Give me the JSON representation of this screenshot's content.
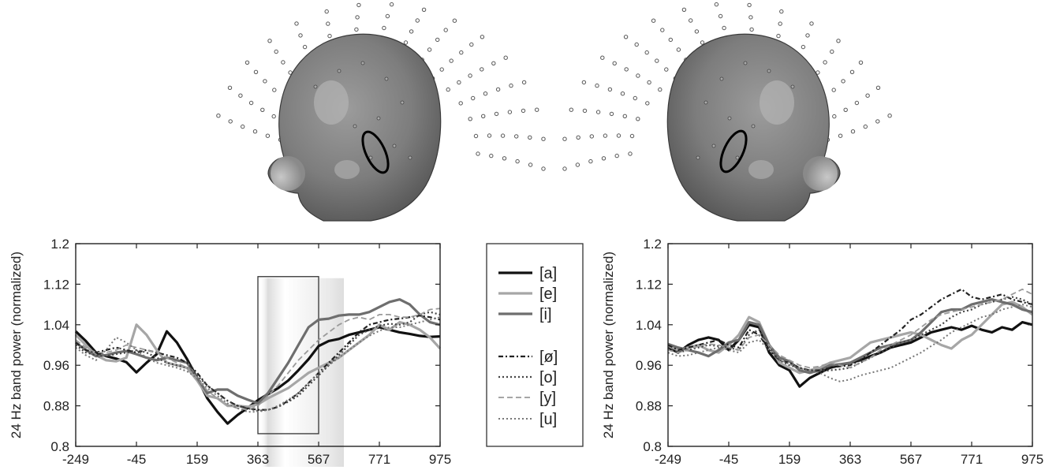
{
  "figure": {
    "legend": [
      "[a]",
      "[e]",
      "[i]",
      "[ø]",
      "[o]",
      "[y]",
      "[u]"
    ]
  },
  "chart_data": [
    {
      "type": "line",
      "ylabel": "24 Hz band power (normalized)",
      "xlabel": "",
      "xlim": [
        -249,
        975
      ],
      "ylim": [
        0.8,
        1.2
      ],
      "xticks": [
        -249,
        -45,
        159,
        363,
        567,
        771,
        975
      ],
      "xtick_labels": [
        "-249",
        "-45",
        "159",
        "363",
        "567",
        "771",
        "975"
      ],
      "yticks": [
        0.8,
        0.88,
        0.96,
        1.04,
        1.12,
        1.2
      ],
      "ytick_labels": [
        "0.8",
        "0.88",
        "0.96",
        "1.04",
        "1.12",
        "1.2"
      ],
      "grid": false,
      "highlight_window": {
        "x": [
          363,
          567
        ],
        "y": [
          0.825,
          1.135
        ]
      },
      "x": [
        -249,
        -215,
        -181,
        -147,
        -113,
        -79,
        -45,
        -11,
        23,
        57,
        91,
        125,
        159,
        193,
        227,
        261,
        295,
        329,
        363,
        397,
        431,
        465,
        499,
        533,
        567,
        601,
        635,
        669,
        703,
        737,
        771,
        805,
        839,
        873,
        907,
        941,
        975
      ],
      "series": [
        {
          "name": "[a]",
          "style": "solid",
          "color": "#111111",
          "width": 3.2,
          "values": [
            1.027,
            1.008,
            0.985,
            0.978,
            0.973,
            0.966,
            0.946,
            0.965,
            0.982,
            1.027,
            1.005,
            0.972,
            0.935,
            0.895,
            0.868,
            0.845,
            0.862,
            0.876,
            0.891,
            0.903,
            0.915,
            0.93,
            0.95,
            0.972,
            0.998,
            1.008,
            1.012,
            1.02,
            1.025,
            1.03,
            1.035,
            1.03,
            1.025,
            1.022,
            1.018,
            1.016,
            1.017
          ]
        },
        {
          "name": "[e]",
          "style": "solid",
          "color": "#a6a6a6",
          "width": 3.2,
          "values": [
            1.02,
            1.0,
            0.98,
            0.97,
            0.968,
            0.975,
            1.04,
            1.02,
            0.99,
            0.965,
            0.96,
            0.955,
            0.93,
            0.9,
            0.895,
            0.88,
            0.88,
            0.878,
            0.883,
            0.895,
            0.905,
            0.915,
            0.93,
            0.945,
            0.955,
            0.965,
            0.975,
            0.99,
            1.005,
            1.02,
            1.04,
            1.03,
            1.045,
            1.04,
            1.03,
            1.015,
            0.993
          ]
        },
        {
          "name": "[i]",
          "style": "solid",
          "color": "#6e6e6e",
          "width": 3.2,
          "values": [
            1.005,
            0.99,
            0.978,
            0.98,
            0.985,
            0.988,
            0.982,
            0.975,
            0.97,
            0.975,
            0.97,
            0.965,
            0.935,
            0.905,
            0.912,
            0.912,
            0.9,
            0.892,
            0.885,
            0.905,
            0.935,
            0.965,
            1.0,
            1.035,
            1.05,
            1.052,
            1.058,
            1.06,
            1.06,
            1.065,
            1.075,
            1.085,
            1.09,
            1.08,
            1.06,
            1.045,
            1.04
          ]
        },
        {
          "name": "[ø]",
          "style": "dashdot",
          "color": "#222222",
          "width": 2.2,
          "values": [
            1.005,
            0.99,
            0.985,
            0.99,
            0.995,
            0.99,
            0.985,
            0.99,
            0.985,
            0.98,
            0.975,
            0.965,
            0.945,
            0.92,
            0.905,
            0.89,
            0.88,
            0.875,
            0.872,
            0.872,
            0.878,
            0.89,
            0.905,
            0.925,
            0.945,
            0.965,
            0.985,
            1.005,
            1.025,
            1.04,
            1.045,
            1.05,
            1.052,
            1.055,
            1.058,
            1.055,
            1.05
          ]
        },
        {
          "name": "[o]",
          "style": "dotted",
          "color": "#444444",
          "width": 2.2,
          "values": [
            1.0,
            0.985,
            0.98,
            0.978,
            0.982,
            0.985,
            0.99,
            0.985,
            0.975,
            0.965,
            0.96,
            0.955,
            0.94,
            0.92,
            0.905,
            0.89,
            0.88,
            0.875,
            0.87,
            0.872,
            0.878,
            0.888,
            0.9,
            0.92,
            0.94,
            0.96,
            0.98,
            1.0,
            1.02,
            1.03,
            1.038,
            1.042,
            1.04,
            1.045,
            1.06,
            1.065,
            1.06
          ]
        },
        {
          "name": "[y]",
          "style": "dashed",
          "color": "#9a9a9a",
          "width": 1.8,
          "values": [
            1.01,
            0.995,
            0.985,
            0.985,
            0.99,
            1.0,
            0.995,
            0.99,
            0.985,
            0.975,
            0.965,
            0.955,
            0.935,
            0.91,
            0.895,
            0.882,
            0.875,
            0.872,
            0.88,
            0.9,
            0.92,
            0.945,
            0.97,
            0.99,
            1.01,
            1.025,
            1.04,
            1.05,
            1.055,
            1.05,
            1.06,
            1.06,
            1.055,
            1.055,
            1.06,
            1.07,
            1.072
          ]
        },
        {
          "name": "[u]",
          "style": "dotted",
          "color": "#777777",
          "width": 2.0,
          "values": [
            0.995,
            0.98,
            0.97,
            0.99,
            1.015,
            1.005,
            0.99,
            0.975,
            0.965,
            0.96,
            0.955,
            0.948,
            0.935,
            0.915,
            0.9,
            0.885,
            0.875,
            0.868,
            0.868,
            0.872,
            0.88,
            0.892,
            0.905,
            0.925,
            0.945,
            0.96,
            0.975,
            0.99,
            1.005,
            1.018,
            1.028,
            1.035,
            1.035,
            1.04,
            1.045,
            1.05,
            1.055
          ]
        }
      ]
    },
    {
      "type": "line",
      "ylabel": "24 Hz band power (normalized)",
      "xlabel": "",
      "xlim": [
        -249,
        975
      ],
      "ylim": [
        0.8,
        1.2
      ],
      "xticks": [
        -249,
        -45,
        159,
        363,
        567,
        771,
        975
      ],
      "xtick_labels": [
        "-249",
        "-45",
        "159",
        "363",
        "567",
        "771",
        "975"
      ],
      "yticks": [
        0.8,
        0.88,
        0.96,
        1.04,
        1.12,
        1.2
      ],
      "ytick_labels": [
        "0.8",
        "0.88",
        "0.96",
        "1.04",
        "1.12",
        "1.2"
      ],
      "grid": false,
      "x": [
        -249,
        -215,
        -181,
        -147,
        -113,
        -79,
        -45,
        -11,
        23,
        57,
        91,
        125,
        159,
        193,
        227,
        261,
        295,
        329,
        363,
        397,
        431,
        465,
        499,
        533,
        567,
        601,
        635,
        669,
        703,
        737,
        771,
        805,
        839,
        873,
        907,
        941,
        975
      ],
      "series": [
        {
          "name": "[a]",
          "style": "solid",
          "color": "#111111",
          "width": 3.2,
          "values": [
            0.995,
            0.985,
            1.0,
            1.01,
            1.015,
            1.01,
            0.99,
            1.01,
            1.04,
            1.035,
            0.985,
            0.96,
            0.95,
            0.918,
            0.935,
            0.945,
            0.955,
            0.96,
            0.965,
            0.97,
            0.978,
            0.985,
            0.995,
            1.0,
            1.005,
            1.015,
            1.025,
            1.03,
            1.035,
            1.03,
            1.038,
            1.03,
            1.025,
            1.035,
            1.03,
            1.045,
            1.04
          ]
        },
        {
          "name": "[e]",
          "style": "solid",
          "color": "#a6a6a6",
          "width": 3.2,
          "values": [
            0.998,
            0.99,
            0.995,
            1.0,
            0.99,
            0.985,
            1.0,
            1.02,
            1.055,
            1.045,
            1.0,
            0.965,
            0.955,
            0.945,
            0.95,
            0.955,
            0.965,
            0.97,
            0.975,
            0.99,
            1.005,
            1.01,
            1.015,
            1.02,
            1.025,
            1.02,
            1.01,
            1.0,
            0.993,
            1.01,
            1.02,
            1.04,
            1.06,
            1.08,
            1.085,
            1.075,
            1.06
          ]
        },
        {
          "name": "[i]",
          "style": "solid",
          "color": "#6e6e6e",
          "width": 3.2,
          "values": [
            1.002,
            0.995,
            0.99,
            0.985,
            0.978,
            0.99,
            1.005,
            1.01,
            1.045,
            1.04,
            1.0,
            0.975,
            0.968,
            0.95,
            0.945,
            0.95,
            0.96,
            0.962,
            0.965,
            0.975,
            0.985,
            0.995,
            1.0,
            1.005,
            1.01,
            1.025,
            1.045,
            1.065,
            1.07,
            1.07,
            1.08,
            1.085,
            1.09,
            1.085,
            1.08,
            1.07,
            1.065
          ]
        },
        {
          "name": "[ø]",
          "style": "dashdot",
          "color": "#222222",
          "width": 2.2,
          "values": [
            1.0,
            0.99,
            0.995,
            1.0,
            1.005,
            1.01,
            1.0,
            0.995,
            1.03,
            1.02,
            0.99,
            0.97,
            0.965,
            0.955,
            0.95,
            0.95,
            0.955,
            0.958,
            0.96,
            0.97,
            0.985,
            1.0,
            1.015,
            1.03,
            1.05,
            1.06,
            1.075,
            1.09,
            1.1,
            1.11,
            1.095,
            1.09,
            1.095,
            1.1,
            1.09,
            1.085,
            1.08
          ]
        },
        {
          "name": "[o]",
          "style": "dotted",
          "color": "#444444",
          "width": 2.2,
          "values": [
            0.995,
            0.985,
            0.99,
            0.995,
            1.0,
            0.998,
            0.995,
            0.99,
            1.02,
            1.03,
            0.995,
            0.97,
            0.96,
            0.955,
            0.95,
            0.948,
            0.95,
            0.952,
            0.955,
            0.965,
            0.975,
            0.985,
            0.995,
            1.005,
            1.01,
            1.02,
            1.03,
            1.04,
            1.055,
            1.065,
            1.07,
            1.08,
            1.085,
            1.09,
            1.095,
            1.09,
            1.08
          ]
        },
        {
          "name": "[y]",
          "style": "dashed",
          "color": "#9a9a9a",
          "width": 1.8,
          "values": [
            0.99,
            0.985,
            0.99,
            0.998,
            1.002,
            1.0,
            0.995,
            0.99,
            1.015,
            1.02,
            1.0,
            0.98,
            0.97,
            0.96,
            0.955,
            0.958,
            0.965,
            0.96,
            0.955,
            0.965,
            0.975,
            0.99,
            1.0,
            1.01,
            1.02,
            1.035,
            1.05,
            1.06,
            1.065,
            1.07,
            1.075,
            1.08,
            1.085,
            1.09,
            1.1,
            1.11,
            1.1
          ]
        },
        {
          "name": "[u]",
          "style": "dotted",
          "color": "#777777",
          "width": 2.0,
          "values": [
            0.985,
            0.978,
            0.98,
            0.985,
            0.99,
            0.995,
            0.99,
            0.985,
            1.005,
            1.01,
            0.99,
            0.972,
            0.962,
            0.955,
            0.948,
            0.945,
            0.935,
            0.928,
            0.932,
            0.94,
            0.945,
            0.95,
            0.955,
            0.965,
            0.975,
            0.985,
            0.998,
            1.01,
            1.025,
            1.035,
            1.045,
            1.055,
            1.06,
            1.07,
            1.075,
            1.08,
            1.075
          ]
        }
      ]
    }
  ]
}
